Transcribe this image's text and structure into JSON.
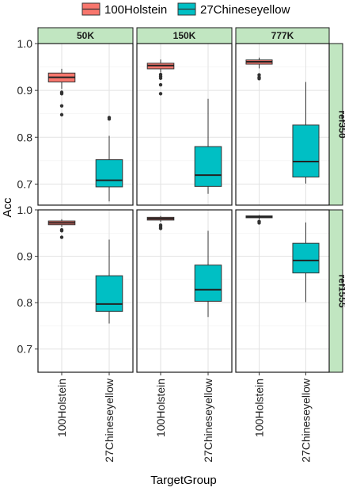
{
  "chart_data": {
    "type": "boxplot",
    "xlabel": "TargetGroup",
    "ylabel": "Acc",
    "legend": {
      "position": "top",
      "entries": [
        {
          "name": "100Holstein",
          "color": "#F8766D"
        },
        {
          "name": "27Chineseyellow",
          "color": "#00BFC4"
        }
      ]
    },
    "categories": [
      "100Holstein",
      "27Chineseyellow"
    ],
    "facet_cols": [
      "50K",
      "150K",
      "777K"
    ],
    "facet_rows": [
      {
        "label": "ref350",
        "ylim": [
          0.655,
          1.0
        ],
        "yticks": [
          "0.7",
          "0.8",
          "0.9",
          "1.0"
        ],
        "yvals": [
          0.7,
          0.8,
          0.9,
          1.0
        ]
      },
      {
        "label": "ref1555",
        "ylim": [
          0.65,
          1.0
        ],
        "yticks": [
          "0.7",
          "0.8",
          "0.9",
          "1.0"
        ],
        "yvals": [
          0.7,
          0.8,
          0.9,
          1.0
        ]
      }
    ],
    "grid": true,
    "panels": [
      {
        "row": 0,
        "col": 0,
        "boxes": [
          {
            "group": "100Holstein",
            "whisker_low": 0.903,
            "q1": 0.918,
            "median": 0.928,
            "q3": 0.937,
            "whisker_high": 0.946,
            "outliers": [
              0.896,
              0.893,
              0.867,
              0.848
            ]
          },
          {
            "group": "27Chineseyellow",
            "whisker_low": 0.663,
            "q1": 0.694,
            "median": 0.708,
            "q3": 0.752,
            "whisker_high": 0.803,
            "outliers": [
              0.842,
              0.839
            ]
          }
        ]
      },
      {
        "row": 0,
        "col": 1,
        "boxes": [
          {
            "group": "100Holstein",
            "whisker_low": 0.938,
            "q1": 0.946,
            "median": 0.953,
            "q3": 0.958,
            "whisker_high": 0.966,
            "outliers": [
              0.934,
              0.93,
              0.926,
              0.912,
              0.893
            ]
          },
          {
            "group": "27Chineseyellow",
            "whisker_low": 0.679,
            "q1": 0.695,
            "median": 0.719,
            "q3": 0.78,
            "whisker_high": 0.882,
            "outliers": []
          }
        ]
      },
      {
        "row": 0,
        "col": 2,
        "boxes": [
          {
            "group": "100Holstein",
            "whisker_low": 0.947,
            "q1": 0.956,
            "median": 0.961,
            "q3": 0.965,
            "whisker_high": 0.97,
            "outliers": [
              0.933,
              0.928,
              0.925
            ]
          },
          {
            "group": "27Chineseyellow",
            "whisker_low": 0.701,
            "q1": 0.715,
            "median": 0.748,
            "q3": 0.826,
            "whisker_high": 0.918,
            "outliers": []
          }
        ]
      },
      {
        "row": 1,
        "col": 0,
        "boxes": [
          {
            "group": "100Holstein",
            "whisker_low": 0.963,
            "q1": 0.968,
            "median": 0.972,
            "q3": 0.976,
            "whisker_high": 0.98,
            "outliers": [
              0.957,
              0.955,
              0.941
            ]
          },
          {
            "group": "27Chineseyellow",
            "whisker_low": 0.755,
            "q1": 0.781,
            "median": 0.797,
            "q3": 0.858,
            "whisker_high": 0.936,
            "outliers": []
          }
        ]
      },
      {
        "row": 1,
        "col": 1,
        "boxes": [
          {
            "group": "100Holstein",
            "whisker_low": 0.974,
            "q1": 0.978,
            "median": 0.981,
            "q3": 0.984,
            "whisker_high": 0.987,
            "outliers": [
              0.967,
              0.963,
              0.96
            ]
          },
          {
            "group": "27Chineseyellow",
            "whisker_low": 0.769,
            "q1": 0.803,
            "median": 0.828,
            "q3": 0.881,
            "whisker_high": 0.955,
            "outliers": []
          }
        ]
      },
      {
        "row": 1,
        "col": 2,
        "boxes": [
          {
            "group": "100Holstein",
            "whisker_low": 0.979,
            "q1": 0.983,
            "median": 0.985,
            "q3": 0.987,
            "whisker_high": 0.989,
            "outliers": [
              0.975,
              0.972
            ]
          },
          {
            "group": "27Chineseyellow",
            "whisker_low": 0.801,
            "q1": 0.864,
            "median": 0.891,
            "q3": 0.928,
            "whisker_high": 0.973,
            "outliers": []
          }
        ]
      }
    ]
  }
}
